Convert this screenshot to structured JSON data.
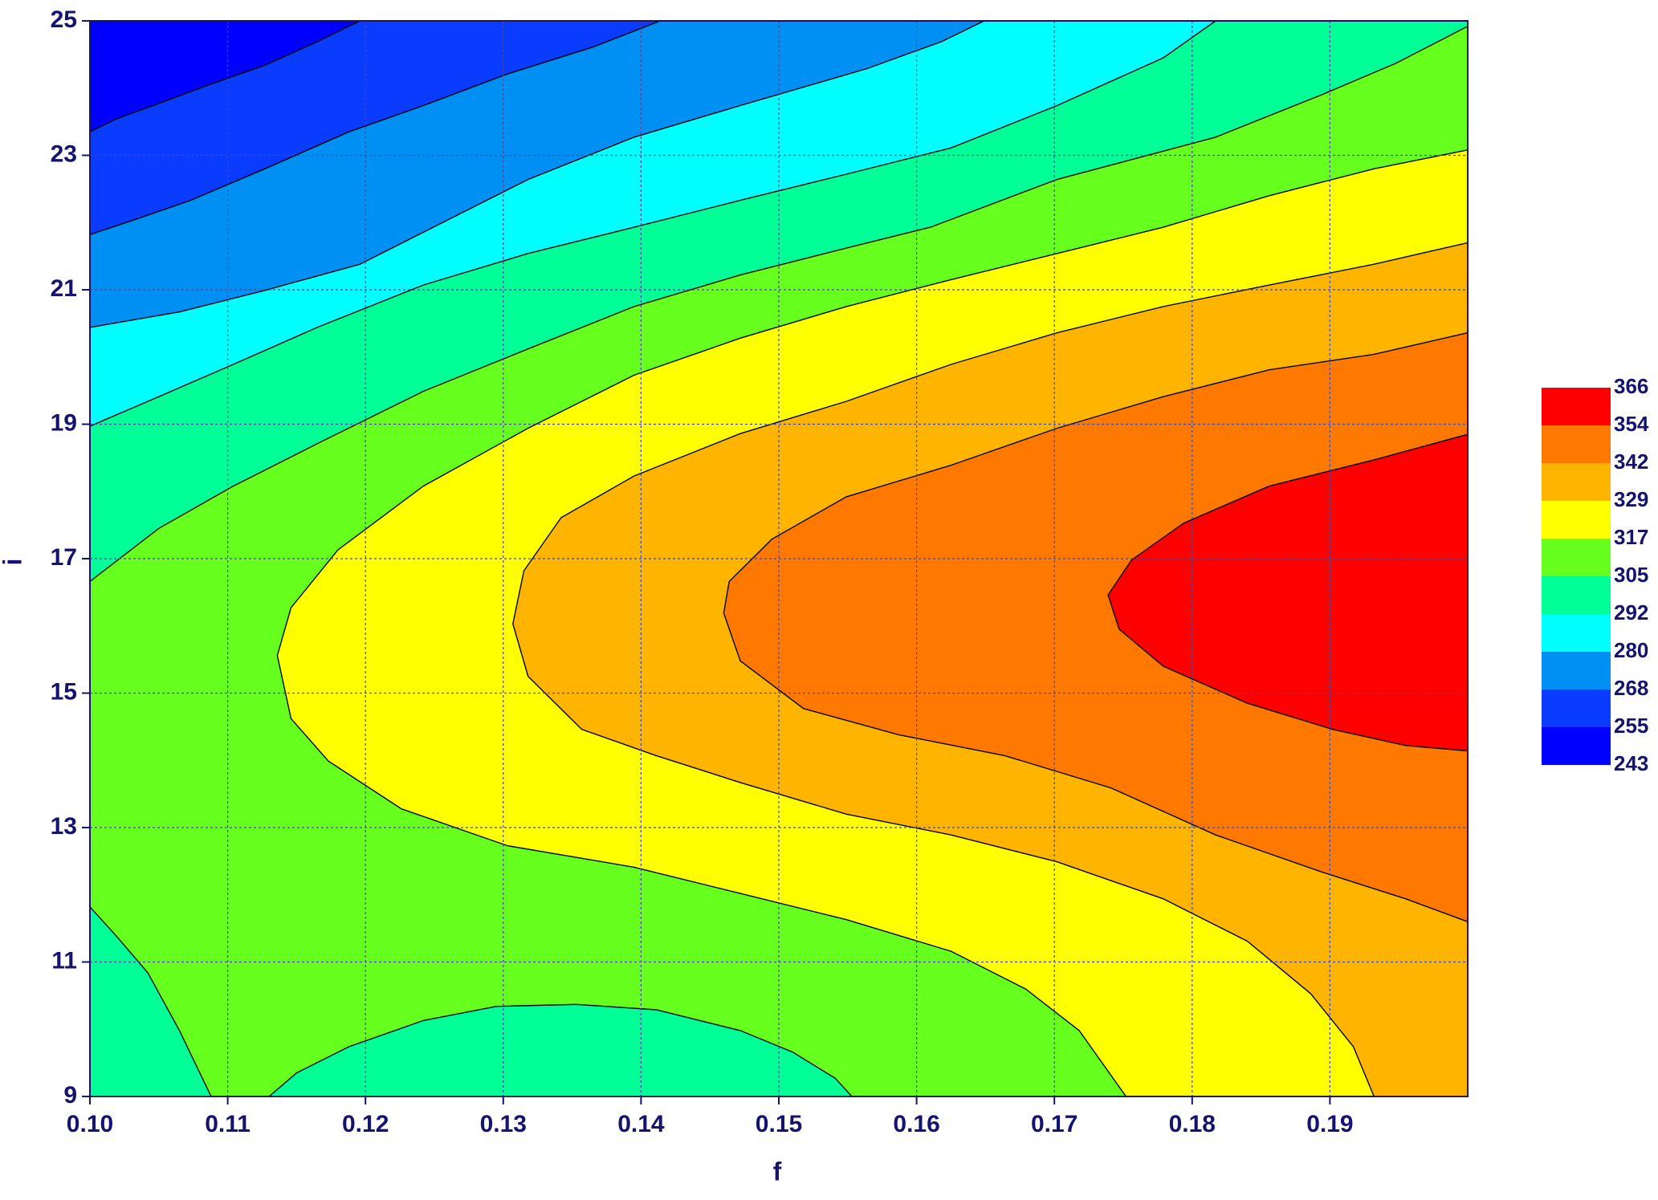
{
  "chart_data": {
    "type": "contour",
    "x_label": "f",
    "y_label": "i",
    "xlim": [
      0.1,
      0.2
    ],
    "ylim": [
      9,
      25
    ],
    "xticks": [
      {
        "value": 0.1,
        "label": "0.10"
      },
      0.11,
      0.12,
      0.13,
      0.14,
      0.15,
      0.16,
      0.17,
      0.18,
      0.19
    ],
    "yticks": [
      9,
      11,
      13,
      15,
      17,
      19,
      21,
      23,
      25
    ],
    "grid": true,
    "levels": [
      243,
      255,
      268,
      280,
      292,
      305,
      317,
      329,
      342,
      354,
      366
    ],
    "colors": [
      "#0000ff",
      "#0a3cff",
      "#0090f4",
      "#00ffff",
      "#00ff96",
      "#66ff1e",
      "#ffff00",
      "#ffb400",
      "#ff7800",
      "#ff0000"
    ],
    "contours": [
      {
        "level": 255,
        "x": [
          0.1196,
          0.1165,
          0.1127,
          0.1088,
          0.105,
          0.1019,
          0.1
        ],
        "y": [
          25,
          24.69,
          24.34,
          24.06,
          23.77,
          23.54,
          23.35
        ]
      },
      {
        "level": 268,
        "x": [
          0.1414,
          0.1365,
          0.1303,
          0.1242,
          0.1188,
          0.1127,
          0.1073,
          0.1035,
          0.1
        ],
        "y": [
          25,
          24.61,
          24.21,
          23.74,
          23.35,
          22.8,
          22.33,
          22.06,
          21.82
        ]
      },
      {
        "level": 280,
        "x": [
          0.1649,
          0.1618,
          0.1564,
          0.1472,
          0.1395,
          0.1318,
          0.1257,
          0.1196,
          0.1127,
          0.1065,
          0.1
        ],
        "y": [
          25,
          24.69,
          24.29,
          23.74,
          23.27,
          22.64,
          22.01,
          21.38,
          20.99,
          20.67,
          20.44
        ]
      },
      {
        "level": 292,
        "x": [
          0.1817,
          0.1779,
          0.1702,
          0.1625,
          0.1549,
          0.1472,
          0.1395,
          0.1318,
          0.1242,
          0.1165,
          0.1104,
          0.105,
          0.1
        ],
        "y": [
          25,
          24.45,
          23.74,
          23.11,
          22.72,
          22.33,
          21.93,
          21.54,
          21.07,
          20.44,
          19.89,
          19.41,
          18.97
        ]
      },
      {
        "level": 305,
        "x": [
          0.2,
          0.1948,
          0.1894,
          0.1817,
          0.1702,
          0.161,
          0.1549,
          0.1472,
          0.1395,
          0.1318,
          0.1242,
          0.1165,
          0.1104,
          0.105,
          0.1
        ],
        "y": [
          24.92,
          24.37,
          23.9,
          23.27,
          22.64,
          21.93,
          21.62,
          21.22,
          20.75,
          20.12,
          19.49,
          18.71,
          18.08,
          17.45,
          16.66
        ]
      },
      {
        "level": 305,
        "x": [
          0.1,
          0.1019,
          0.1042,
          0.1065,
          0.1088
        ],
        "y": [
          11.82,
          11.39,
          10.84,
          9.98,
          9
        ]
      },
      {
        "level": 305,
        "x": [
          0.113,
          0.115,
          0.1188,
          0.1242,
          0.1295,
          0.1353,
          0.1411,
          0.1472,
          0.151,
          0.1541,
          0.1553
        ],
        "y": [
          9,
          9.35,
          9.74,
          10.13,
          10.34,
          10.37,
          10.29,
          9.98,
          9.66,
          9.27,
          9
        ]
      },
      {
        "level": 317,
        "x": [
          0.2,
          0.1932,
          0.1856,
          0.1779,
          0.1702,
          0.1625,
          0.1549,
          0.1472,
          0.1395,
          0.1318,
          0.1242,
          0.118,
          0.1146,
          0.1136,
          0.1146,
          0.1173,
          0.1226,
          0.1303,
          0.1395,
          0.1472,
          0.1549,
          0.1625,
          0.1679,
          0.1718,
          0.1752
        ],
        "y": [
          23.08,
          22.8,
          22.4,
          21.93,
          21.54,
          21.15,
          20.75,
          20.28,
          19.73,
          18.94,
          18.08,
          17.13,
          16.27,
          15.56,
          14.62,
          13.99,
          13.28,
          12.73,
          12.41,
          12.02,
          11.63,
          11.16,
          10.6,
          9.98,
          9
        ]
      },
      {
        "level": 329,
        "x": [
          0.2,
          0.1932,
          0.1856,
          0.1779,
          0.1702,
          0.1625,
          0.1549,
          0.1472,
          0.1395,
          0.1342,
          0.1315,
          0.1307,
          0.1318,
          0.1357,
          0.1411,
          0.1472,
          0.1549,
          0.1625,
          0.1702,
          0.1779,
          0.184,
          0.1886,
          0.1917,
          0.1932
        ],
        "y": [
          21.7,
          21.38,
          21.07,
          20.75,
          20.36,
          19.89,
          19.34,
          18.86,
          18.23,
          17.61,
          16.82,
          16.03,
          15.25,
          14.46,
          14.07,
          13.67,
          13.2,
          12.89,
          12.49,
          11.94,
          11.31,
          10.53,
          9.74,
          9
        ]
      },
      {
        "level": 342,
        "x": [
          0.2,
          0.1932,
          0.1856,
          0.1779,
          0.1702,
          0.1625,
          0.1549,
          0.1495,
          0.1464,
          0.146,
          0.1472,
          0.1518,
          0.1587,
          0.1664,
          0.1741,
          0.1817,
          0.1894,
          0.1955,
          0.2
        ],
        "y": [
          20.36,
          20.04,
          19.81,
          19.41,
          18.94,
          18.39,
          17.92,
          17.29,
          16.66,
          16.19,
          15.48,
          14.77,
          14.38,
          14.07,
          13.59,
          12.89,
          12.34,
          11.94,
          11.6
        ]
      },
      {
        "level": 354,
        "x": [
          0.2,
          0.1932,
          0.1856,
          0.1794,
          0.1756,
          0.1739,
          0.1747,
          0.1779,
          0.184,
          0.1902,
          0.1955,
          0.2
        ],
        "y": [
          18.85,
          18.47,
          18.08,
          17.53,
          16.98,
          16.46,
          15.95,
          15.4,
          14.85,
          14.46,
          14.22,
          14.14
        ]
      }
    ]
  }
}
